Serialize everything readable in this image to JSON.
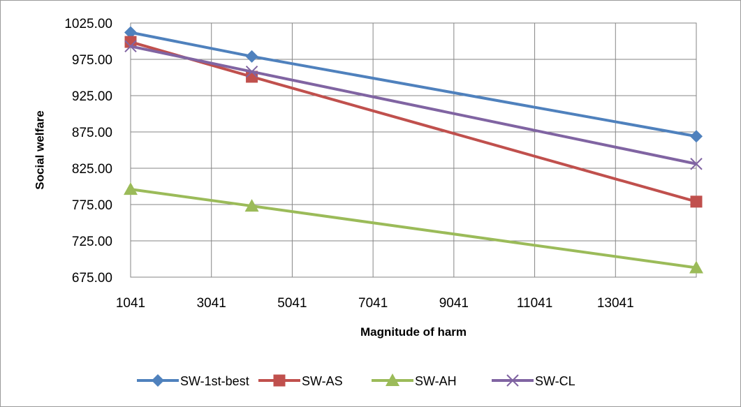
{
  "chart_data": {
    "type": "line",
    "title": "",
    "xlabel": "Magnitude of harm",
    "ylabel": "Social welfare",
    "x": [
      1041,
      4041,
      15041
    ],
    "xlim": [
      1041,
      15041
    ],
    "xticks": [
      1041,
      3041,
      5041,
      7041,
      9041,
      11041,
      13041
    ],
    "xtick_labels": [
      "1041",
      "3041",
      "5041",
      "7041",
      "9041",
      "11041",
      "13041"
    ],
    "ylim": [
      675,
      1025
    ],
    "yticks": [
      675,
      725,
      775,
      825,
      875,
      925,
      975,
      1025
    ],
    "ytick_labels": [
      "675.00",
      "725.00",
      "775.00",
      "825.00",
      "875.00",
      "925.00",
      "975.00",
      "1025.00"
    ],
    "grid": true,
    "legend_position": "bottom",
    "series": [
      {
        "name": "SW-1st-best",
        "color": "#4f81bd",
        "marker": "diamond",
        "values": [
          1012,
          979,
          869
        ]
      },
      {
        "name": "SW-AS",
        "color": "#c0504d",
        "marker": "square",
        "values": [
          999,
          951,
          779
        ]
      },
      {
        "name": "SW-AH",
        "color": "#9bbb59",
        "marker": "triangle",
        "values": [
          796,
          773,
          688
        ]
      },
      {
        "name": "SW-CL",
        "color": "#8064a2",
        "marker": "x",
        "values": [
          993,
          958,
          831
        ]
      }
    ]
  }
}
